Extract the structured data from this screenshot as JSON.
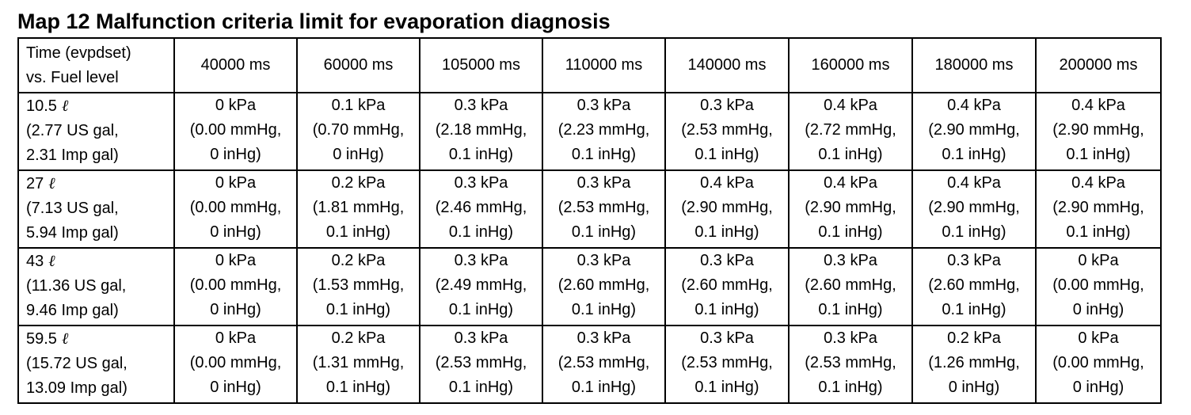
{
  "title": "Map 12 Malfunction criteria limit for evaporation diagnosis",
  "corner": {
    "line1": "Time (evpdset)",
    "line2": "vs. Fuel level"
  },
  "columns": [
    "40000 ms",
    "60000 ms",
    "105000 ms",
    "110000 ms",
    "140000 ms",
    "160000 ms",
    "180000 ms",
    "200000 ms"
  ],
  "liter_symbol": "ℓ",
  "rows": [
    {
      "fuel": {
        "line1": "10.5",
        "line2": "(2.77 US gal,",
        "line3": "2.31 Imp gal)"
      },
      "cells": [
        [
          "0 kPa",
          "(0.00 mmHg,",
          "0 inHg)"
        ],
        [
          "0.1 kPa",
          "(0.70 mmHg,",
          "0 inHg)"
        ],
        [
          "0.3 kPa",
          "(2.18 mmHg,",
          "0.1 inHg)"
        ],
        [
          "0.3 kPa",
          "(2.23 mmHg,",
          "0.1 inHg)"
        ],
        [
          "0.3 kPa",
          "(2.53 mmHg,",
          "0.1 inHg)"
        ],
        [
          "0.4 kPa",
          "(2.72 mmHg,",
          "0.1 inHg)"
        ],
        [
          "0.4 kPa",
          "(2.90 mmHg,",
          "0.1 inHg)"
        ],
        [
          "0.4 kPa",
          "(2.90 mmHg,",
          "0.1 inHg)"
        ]
      ]
    },
    {
      "fuel": {
        "line1": "27",
        "line2": "(7.13 US gal,",
        "line3": "5.94 Imp gal)"
      },
      "cells": [
        [
          "0 kPa",
          "(0.00 mmHg,",
          "0 inHg)"
        ],
        [
          "0.2 kPa",
          "(1.81 mmHg,",
          "0.1 inHg)"
        ],
        [
          "0.3 kPa",
          "(2.46 mmHg,",
          "0.1 inHg)"
        ],
        [
          "0.3 kPa",
          "(2.53 mmHg,",
          "0.1 inHg)"
        ],
        [
          "0.4 kPa",
          "(2.90 mmHg,",
          "0.1 inHg)"
        ],
        [
          "0.4 kPa",
          "(2.90 mmHg,",
          "0.1 inHg)"
        ],
        [
          "0.4 kPa",
          "(2.90 mmHg,",
          "0.1 inHg)"
        ],
        [
          "0.4 kPa",
          "(2.90 mmHg,",
          "0.1 inHg)"
        ]
      ]
    },
    {
      "fuel": {
        "line1": "43",
        "line2": "(11.36 US gal,",
        "line3": "9.46 Imp gal)"
      },
      "cells": [
        [
          "0 kPa",
          "(0.00 mmHg,",
          "0 inHg)"
        ],
        [
          "0.2 kPa",
          "(1.53 mmHg,",
          "0.1 inHg)"
        ],
        [
          "0.3 kPa",
          "(2.49 mmHg,",
          "0.1 inHg)"
        ],
        [
          "0.3 kPa",
          "(2.60 mmHg,",
          "0.1 inHg)"
        ],
        [
          "0.3 kPa",
          "(2.60 mmHg,",
          "0.1 inHg)"
        ],
        [
          "0.3 kPa",
          "(2.60 mmHg,",
          "0.1 inHg)"
        ],
        [
          "0.3 kPa",
          "(2.60 mmHg,",
          "0.1 inHg)"
        ],
        [
          "0 kPa",
          "(0.00 mmHg,",
          "0 inHg)"
        ]
      ]
    },
    {
      "fuel": {
        "line1": "59.5",
        "line2": "(15.72 US gal,",
        "line3": "13.09 Imp gal)"
      },
      "cells": [
        [
          "0 kPa",
          "(0.00 mmHg,",
          "0 inHg)"
        ],
        [
          "0.2 kPa",
          "(1.31 mmHg,",
          "0.1 inHg)"
        ],
        [
          "0.3 kPa",
          "(2.53 mmHg,",
          "0.1 inHg)"
        ],
        [
          "0.3 kPa",
          "(2.53 mmHg,",
          "0.1 inHg)"
        ],
        [
          "0.3 kPa",
          "(2.53 mmHg,",
          "0.1 inHg)"
        ],
        [
          "0.3 kPa",
          "(2.53 mmHg,",
          "0.1 inHg)"
        ],
        [
          "0.2 kPa",
          "(1.26 mmHg,",
          "0 inHg)"
        ],
        [
          "0 kPa",
          "(0.00 mmHg,",
          "0 inHg)"
        ]
      ]
    }
  ]
}
